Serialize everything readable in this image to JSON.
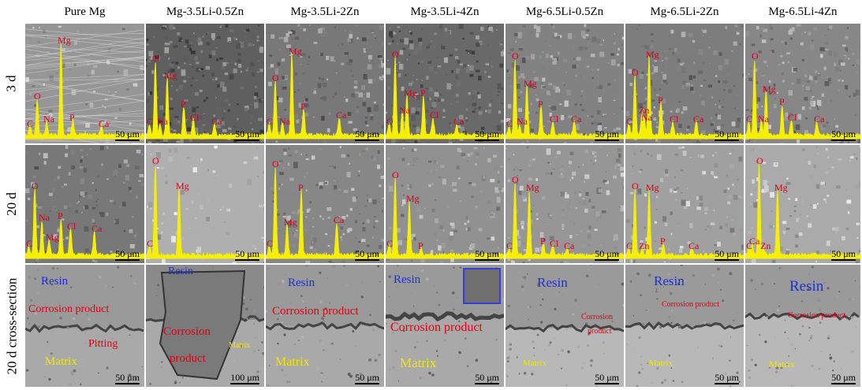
{
  "columns": [
    "Pure Mg",
    "Mg-3.5Li-0.5Zn",
    "Mg-3.5Li-2Zn",
    "Mg-3.5Li-4Zn",
    "Mg-6.5Li-0.5Zn",
    "Mg-6.5Li-2Zn",
    "Mg-6.5Li-4Zn"
  ],
  "rows": [
    "3 d",
    "20 d",
    "20 d cross-section"
  ],
  "scale_50": "50 μm",
  "scale_100": "100 μm",
  "eds": {
    "3d": [
      [
        {
          "t": "Mg"
        },
        {
          "t": "O"
        },
        {
          "t": "C"
        },
        {
          "t": "Na"
        },
        {
          "t": "P"
        },
        {
          "t": "Ca"
        }
      ],
      [
        {
          "t": "O"
        },
        {
          "t": "Mg"
        },
        {
          "t": "P"
        },
        {
          "t": "C"
        },
        {
          "t": "Na"
        },
        {
          "t": "Cl"
        },
        {
          "t": "Ca"
        }
      ],
      [
        {
          "t": "Mg"
        },
        {
          "t": "O"
        },
        {
          "t": "P"
        },
        {
          "t": "C"
        },
        {
          "t": "Na"
        },
        {
          "t": "Ca"
        }
      ],
      [
        {
          "t": "O"
        },
        {
          "t": "Mg"
        },
        {
          "t": "P"
        },
        {
          "t": "Na"
        },
        {
          "t": "Cl"
        },
        {
          "t": "C"
        },
        {
          "t": "Ca"
        }
      ],
      [
        {
          "t": "O"
        },
        {
          "t": "Mg"
        },
        {
          "t": "P"
        },
        {
          "t": "C"
        },
        {
          "t": "Na"
        },
        {
          "t": "Cl"
        },
        {
          "t": "Ca"
        }
      ],
      [
        {
          "t": "Mg"
        },
        {
          "t": "O"
        },
        {
          "t": "Zn"
        },
        {
          "t": "Na"
        },
        {
          "t": "P"
        },
        {
          "t": "C"
        },
        {
          "t": "Cl"
        },
        {
          "t": "Ca"
        }
      ],
      [
        {
          "t": "O"
        },
        {
          "t": "Mg"
        },
        {
          "t": "P"
        },
        {
          "t": "C"
        },
        {
          "t": "Na"
        },
        {
          "t": "Cl"
        },
        {
          "t": "Ca"
        }
      ]
    ],
    "20d": [
      [
        {
          "t": "O"
        },
        {
          "t": "Na"
        },
        {
          "t": "P"
        },
        {
          "t": "Mg"
        },
        {
          "t": "Cl"
        },
        {
          "t": "C"
        },
        {
          "t": "Ca"
        }
      ],
      [
        {
          "t": "O"
        },
        {
          "t": "Mg"
        },
        {
          "t": "C"
        }
      ],
      [
        {
          "t": "O"
        },
        {
          "t": "P"
        },
        {
          "t": "Ca"
        },
        {
          "t": "Mg"
        },
        {
          "t": "C"
        }
      ],
      [
        {
          "t": "O"
        },
        {
          "t": "Mg"
        },
        {
          "t": "C"
        },
        {
          "t": "P"
        }
      ],
      [
        {
          "t": "O"
        },
        {
          "t": "Mg"
        },
        {
          "t": "P"
        },
        {
          "t": "Cl"
        },
        {
          "t": "C"
        },
        {
          "t": "Ca"
        }
      ],
      [
        {
          "t": "O"
        },
        {
          "t": "Mg"
        },
        {
          "t": "C"
        },
        {
          "t": "Zn"
        },
        {
          "t": "P"
        },
        {
          "t": "Ca"
        }
      ],
      [
        {
          "t": "O"
        },
        {
          "t": "Mg"
        },
        {
          "t": "Ca"
        },
        {
          "t": "C"
        },
        {
          "t": "Zn"
        }
      ]
    ]
  },
  "cross_section": {
    "resin": "Resin",
    "corrosion_product": "Corrosion product",
    "corrosion": "Corrosion",
    "product": "product",
    "pitting": "Pitting",
    "matrix": "Matrix"
  }
}
